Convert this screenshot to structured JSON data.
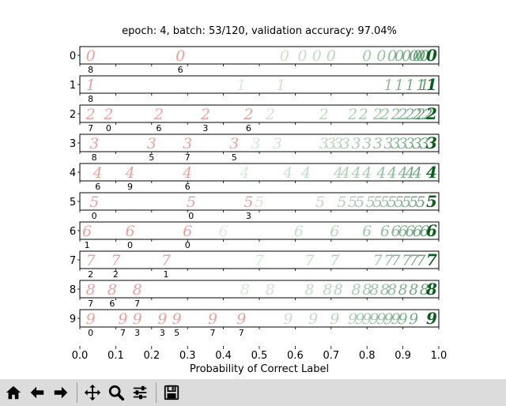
{
  "title": "epoch: 4, batch: 53/120, validation accuracy: 97.04%",
  "xlabel": "Probability of Correct Label",
  "toolbar": [
    {
      "name": "home-button",
      "icon": "home-icon"
    },
    {
      "name": "back-button",
      "icon": "arrow-left-icon"
    },
    {
      "name": "forward-button",
      "icon": "arrow-right-icon"
    },
    {
      "sep": true
    },
    {
      "name": "pan-button",
      "icon": "move-icon"
    },
    {
      "name": "zoom-button",
      "icon": "zoom-icon"
    },
    {
      "name": "configure-subplots-button",
      "icon": "sliders-icon"
    },
    {
      "sep": true
    },
    {
      "name": "save-button",
      "icon": "save-icon"
    }
  ],
  "chart_data": {
    "type": "scatter",
    "title": "epoch: 4, batch: 53/120, validation accuracy: 97.04%",
    "xlabel": "Probability of Correct Label",
    "xlim": [
      0.0,
      1.0
    ],
    "xticks": [
      "0.0",
      "0.1",
      "0.2",
      "0.3",
      "0.4",
      "0.5",
      "0.6",
      "0.7",
      "0.8",
      "0.9",
      "1.0"
    ],
    "colors": {
      "wrong": "#d9534f",
      "correct": "#2e8b57",
      "correct_dark": "#0b5d1e"
    },
    "rows": [
      {
        "label": "0",
        "misclassified": [
          {
            "x": 0.03,
            "pred": "8"
          },
          {
            "x": 0.28,
            "pred": "6"
          }
        ],
        "correct": [
          0.57,
          0.62,
          0.66,
          0.7,
          0.8,
          0.84,
          0.87,
          0.89,
          0.91,
          0.93,
          0.94,
          0.95,
          0.96,
          0.98
        ]
      },
      {
        "label": "1",
        "misclassified": [
          {
            "x": 0.03,
            "pred": "8"
          }
        ],
        "correct": [
          0.45,
          0.56,
          0.86,
          0.89,
          0.92,
          0.95,
          0.96,
          0.98
        ]
      },
      {
        "label": "2",
        "misclassified": [
          {
            "x": 0.03,
            "pred": "7"
          },
          {
            "x": 0.08,
            "pred": "0"
          },
          {
            "x": 0.22,
            "pred": "6"
          },
          {
            "x": 0.35,
            "pred": "3"
          },
          {
            "x": 0.47,
            "pred": "6"
          }
        ],
        "correct": [
          0.53,
          0.68,
          0.76,
          0.79,
          0.83,
          0.85,
          0.88,
          0.9,
          0.92,
          0.94,
          0.95,
          0.97,
          0.98
        ]
      },
      {
        "label": "3",
        "misclassified": [
          {
            "x": 0.04,
            "pred": "8"
          },
          {
            "x": 0.2,
            "pred": "5"
          },
          {
            "x": 0.3,
            "pred": "7"
          },
          {
            "x": 0.43,
            "pred": "5"
          }
        ],
        "correct": [
          0.49,
          0.55,
          0.68,
          0.7,
          0.72,
          0.74,
          0.77,
          0.8,
          0.83,
          0.86,
          0.88,
          0.9,
          0.92,
          0.94,
          0.96,
          0.98
        ]
      },
      {
        "label": "4",
        "misclassified": [
          {
            "x": 0.05,
            "pred": "6"
          },
          {
            "x": 0.14,
            "pred": "9"
          },
          {
            "x": 0.3,
            "pred": "6"
          }
        ],
        "correct": [
          0.46,
          0.58,
          0.63,
          0.72,
          0.74,
          0.77,
          0.8,
          0.84,
          0.87,
          0.9,
          0.92,
          0.94,
          0.98
        ]
      },
      {
        "label": "5",
        "misclassified": [
          {
            "x": 0.04,
            "pred": "0"
          },
          {
            "x": 0.31,
            "pred": "0"
          },
          {
            "x": 0.47,
            "pred": "3"
          }
        ],
        "correct": [
          0.5,
          0.67,
          0.73,
          0.76,
          0.78,
          0.81,
          0.83,
          0.85,
          0.87,
          0.89,
          0.91,
          0.93,
          0.95,
          0.98
        ]
      },
      {
        "label": "6",
        "misclassified": [
          {
            "x": 0.02,
            "pred": "1"
          },
          {
            "x": 0.14,
            "pred": "0"
          },
          {
            "x": 0.3,
            "pred": "0"
          }
        ],
        "correct": [
          0.4,
          0.61,
          0.71,
          0.8,
          0.85,
          0.88,
          0.9,
          0.92,
          0.94,
          0.96,
          0.98
        ]
      },
      {
        "label": "7",
        "misclassified": [
          {
            "x": 0.03,
            "pred": "2"
          },
          {
            "x": 0.1,
            "pred": "2"
          },
          {
            "x": 0.24,
            "pred": "1"
          }
        ],
        "correct": [
          0.5,
          0.64,
          0.71,
          0.83,
          0.86,
          0.88,
          0.91,
          0.93,
          0.95,
          0.98
        ]
      },
      {
        "label": "8",
        "misclassified": [
          {
            "x": 0.03,
            "pred": "7"
          },
          {
            "x": 0.09,
            "pred": "6"
          },
          {
            "x": 0.16,
            "pred": "7"
          }
        ],
        "correct": [
          0.46,
          0.53,
          0.64,
          0.69,
          0.72,
          0.77,
          0.8,
          0.82,
          0.85,
          0.87,
          0.9,
          0.93,
          0.96,
          0.98
        ]
      },
      {
        "label": "9",
        "misclassified": [
          {
            "x": 0.03,
            "pred": "0"
          },
          {
            "x": 0.12,
            "pred": "7"
          },
          {
            "x": 0.16,
            "pred": "3"
          },
          {
            "x": 0.23,
            "pred": "3"
          },
          {
            "x": 0.27,
            "pred": "5"
          },
          {
            "x": 0.37,
            "pred": "7"
          },
          {
            "x": 0.45,
            "pred": "7"
          }
        ],
        "correct": [
          0.58,
          0.65,
          0.71,
          0.76,
          0.78,
          0.8,
          0.82,
          0.84,
          0.86,
          0.88,
          0.9,
          0.93,
          0.98
        ]
      }
    ]
  }
}
